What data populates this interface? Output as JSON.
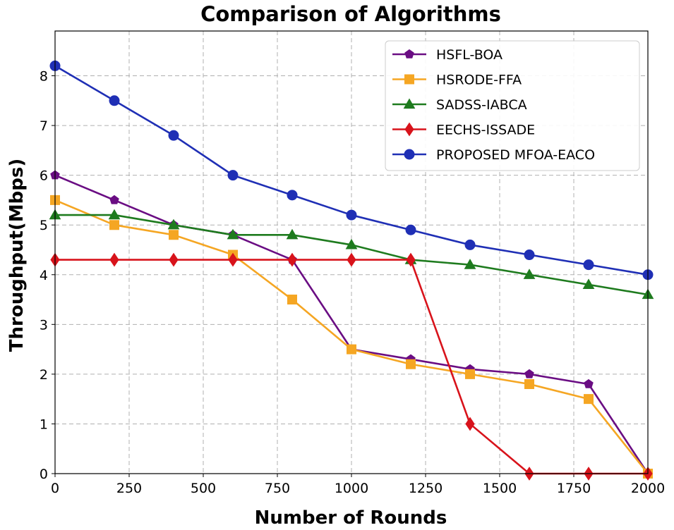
{
  "chart_data": {
    "type": "line",
    "title": "Comparison of Algorithms",
    "xlabel": "Number of Rounds",
    "ylabel": "Throughput(Mbps)",
    "xlim": [
      0,
      2000
    ],
    "ylim": [
      0,
      8.9
    ],
    "xticks": [
      0,
      250,
      500,
      750,
      1000,
      1250,
      1500,
      1750,
      2000
    ],
    "yticks": [
      0,
      1,
      2,
      3,
      4,
      5,
      6,
      7,
      8
    ],
    "grid": true,
    "legend_position": "top-right",
    "x": [
      0,
      200,
      400,
      600,
      800,
      1000,
      1200,
      1400,
      1600,
      1800,
      2000
    ],
    "series": [
      {
        "name": "HSFL-BOA",
        "color": "#6a0d83",
        "marker": "pentagon",
        "values": [
          6.0,
          5.5,
          5.0,
          4.8,
          4.3,
          2.5,
          2.3,
          2.1,
          2.0,
          1.8,
          0.0
        ]
      },
      {
        "name": "HSRODE-FFA",
        "color": "#f5a623",
        "marker": "square",
        "values": [
          5.5,
          5.0,
          4.8,
          4.4,
          3.5,
          2.5,
          2.2,
          2.0,
          1.8,
          1.5,
          0.0
        ]
      },
      {
        "name": "SADSS-IABCA",
        "color": "#1e7b1e",
        "marker": "triangle",
        "values": [
          5.2,
          5.2,
          5.0,
          4.8,
          4.8,
          4.6,
          4.3,
          4.2,
          4.0,
          3.8,
          3.6
        ]
      },
      {
        "name": "EECHS-ISSADE",
        "color": "#d8131b",
        "marker": "diamond",
        "values": [
          4.3,
          4.3,
          4.3,
          4.3,
          4.3,
          4.3,
          4.3,
          1.0,
          0.0,
          0.0,
          0.0
        ]
      },
      {
        "name": "PROPOSED MFOA-EACO",
        "color": "#1f2fb5",
        "marker": "circle",
        "values": [
          8.2,
          7.5,
          6.8,
          6.0,
          5.6,
          5.2,
          4.9,
          4.6,
          4.4,
          4.2,
          4.0
        ]
      }
    ]
  }
}
